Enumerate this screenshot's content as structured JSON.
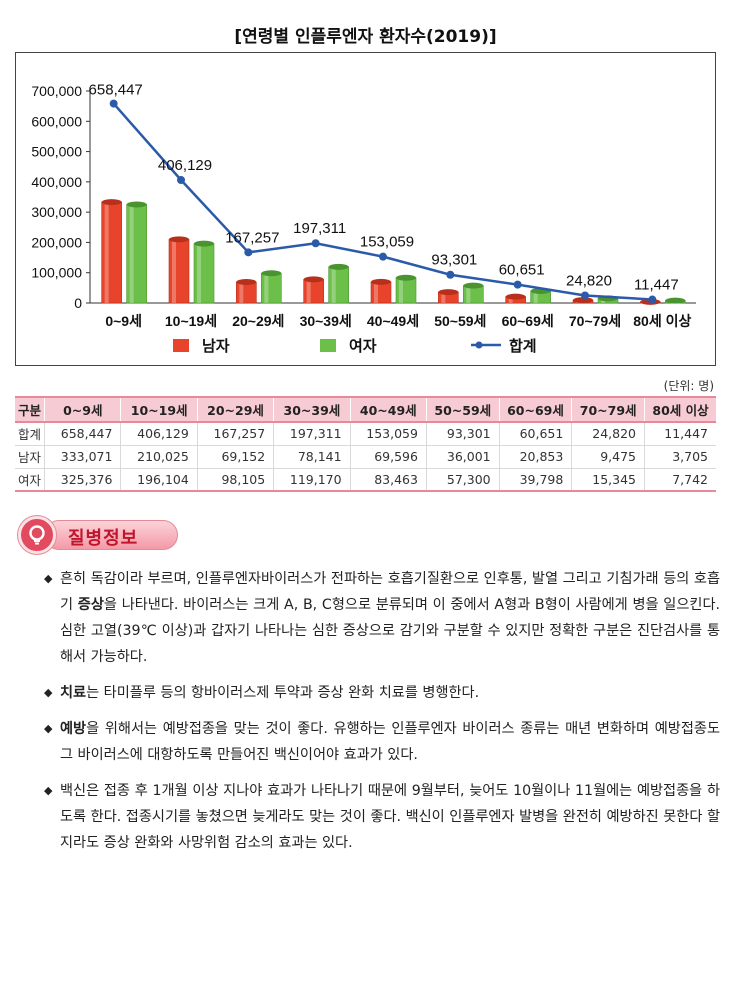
{
  "chart_title": "[연령별 인플루엔자 환자수(2019)]",
  "chart_data": {
    "type": "bar",
    "title": "[연령별 인플루엔자 환자수(2019)]",
    "categories": [
      "0~9세",
      "10~19세",
      "20~29세",
      "30~39세",
      "40~49세",
      "50~59세",
      "60~69세",
      "70~79세",
      "80세 이상"
    ],
    "series": [
      {
        "name": "남자",
        "type": "bar",
        "color": "#e8442c",
        "values": [
          333071,
          210025,
          69152,
          78141,
          69596,
          36001,
          20853,
          9475,
          3705
        ]
      },
      {
        "name": "여자",
        "type": "bar",
        "color": "#6cc04a",
        "values": [
          325376,
          196104,
          98105,
          119170,
          83463,
          57300,
          39798,
          15345,
          7742
        ]
      },
      {
        "name": "합계",
        "type": "line",
        "color": "#2a5aa8",
        "values": [
          658447,
          406129,
          167257,
          197311,
          153059,
          93301,
          60651,
          24820,
          11447
        ]
      }
    ],
    "total_labels": [
      "658,447",
      "406,129",
      "167,257",
      "197,311",
      "153,059",
      "93,301",
      "60,651",
      "24,820",
      "11,447"
    ],
    "yticks": [
      "0",
      "100,000",
      "200,000",
      "300,000",
      "400,000",
      "500,000",
      "600,000",
      "700,000"
    ],
    "ylim": [
      0,
      700000
    ],
    "legend": [
      "남자",
      "여자",
      "합계"
    ],
    "legend_position": "bottom",
    "xlabel": "",
    "ylabel": ""
  },
  "table": {
    "unit": "(단위: 명)",
    "headers": [
      "구분",
      "0~9세",
      "10~19세",
      "20~29세",
      "30~39세",
      "40~49세",
      "50~59세",
      "60~69세",
      "70~79세",
      "80세 이상"
    ],
    "rows": [
      [
        "합계",
        "658,447",
        "406,129",
        "167,257",
        "197,311",
        "153,059",
        "93,301",
        "60,651",
        "24,820",
        "11,447"
      ],
      [
        "남자",
        "333,071",
        "210,025",
        "69,152",
        "78,141",
        "69,596",
        "36,001",
        "20,853",
        "9,475",
        "3,705"
      ],
      [
        "여자",
        "325,376",
        "196,104",
        "98,105",
        "119,170",
        "83,463",
        "57,300",
        "39,798",
        "15,345",
        "7,742"
      ]
    ]
  },
  "section": {
    "title": "질병정보",
    "icon": "lightbulb-icon"
  },
  "bullets": [
    {
      "pre": "흔히 독감이라 부르며, 인플루엔자바이러스가 전파하는 호흡기질환으로 인후통, 발열 그리고 기침가래 등의 호흡기 ",
      "bold": "증상",
      "post": "을 나타낸다. 바이러스는 크게 A, B, C형으로 분류되며 이 중에서 A형과 B형이 사람에게 병을 일으킨다. 심한 고열(39℃ 이상)과 갑자기 나타나는 심한 증상으로 감기와 구분할 수 있지만 정확한 구분은 진단검사를 통해서 가능하다."
    },
    {
      "pre": "",
      "bold": "치료",
      "post": "는 타미플루 등의 항바이러스제 투약과 증상 완화 치료를 병행한다."
    },
    {
      "pre": "",
      "bold": "예방",
      "post": "을 위해서는 예방접종을 맞는 것이 좋다. 유행하는 인플루엔자 바이러스 종류는 매년 변화하며 예방접종도 그 바이러스에 대항하도록 만들어진 백신이어야 효과가 있다."
    },
    {
      "pre": "백신은 접종 후 1개월 이상 지나야 효과가 나타나기 때문에 9월부터, 늦어도 10월이나 11월에는 예방접종을 하도록 한다. 접종시기를 놓쳤으면 늦게라도 맞는 것이 좋다. 백신이 인플루엔자 발병을 완전히 예방하진 못한다 할지라도 증상 완화와 사망위험 감소의 효과는 있다.",
      "bold": "",
      "post": ""
    }
  ]
}
